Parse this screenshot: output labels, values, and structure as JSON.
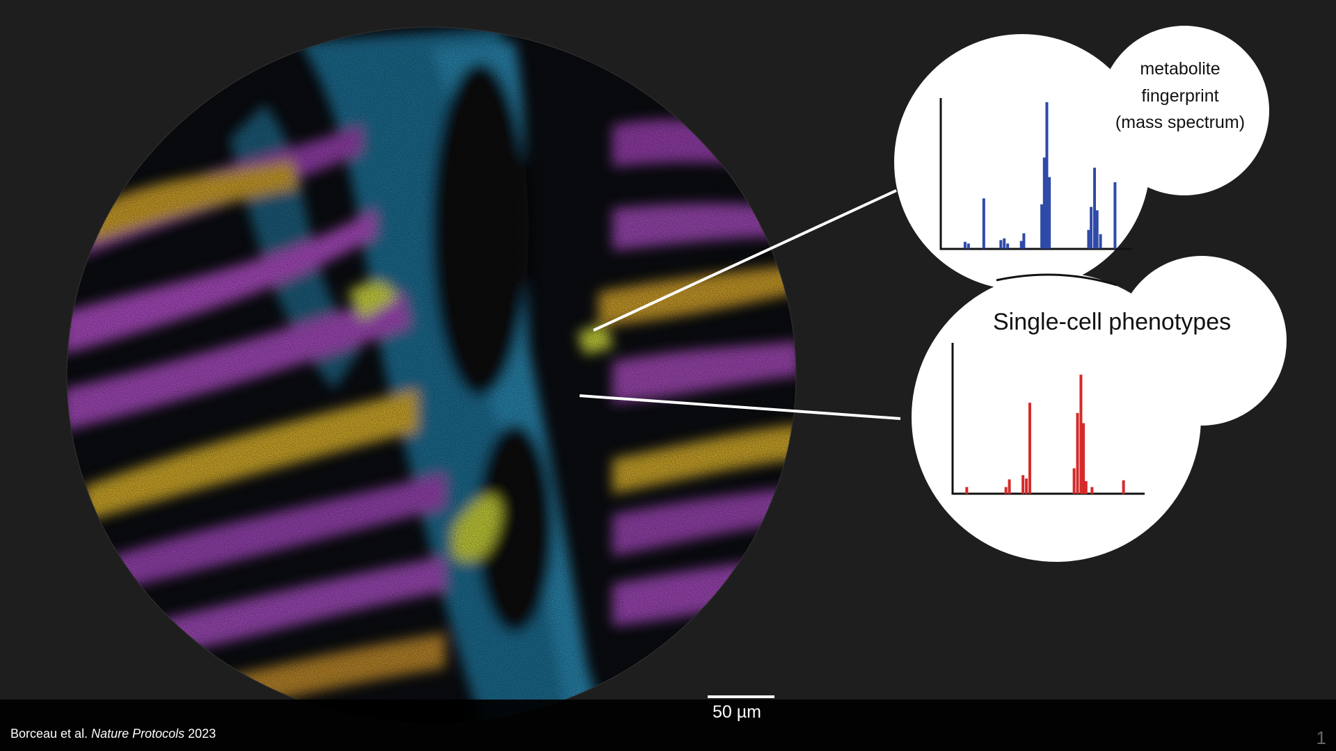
{
  "bubble_top": {
    "lines": [
      "metabolite",
      "fingerprint",
      "(mass spectrum)"
    ]
  },
  "bubble_bottom": {
    "title": "Single-cell phenotypes"
  },
  "scale_bar": {
    "label": "50 µm"
  },
  "citation": {
    "authors": "Borceau et al.",
    "journal": "Nature Protocols",
    "year": "2023"
  },
  "slide_number": "1"
}
